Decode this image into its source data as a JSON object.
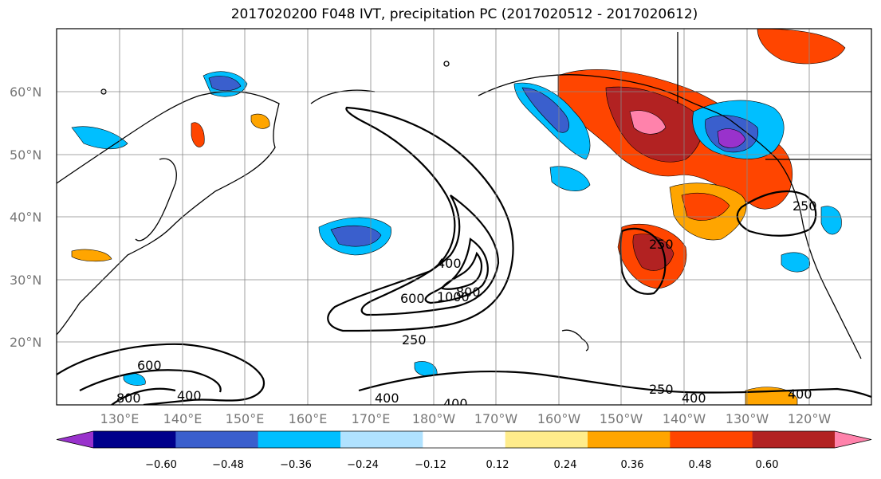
{
  "title": "2017020200 F048 IVT, precipitation PC (2017020512 - 2017020612)",
  "lat_ticks": [
    "60°N",
    "50°N",
    "40°N",
    "30°N",
    "20°N"
  ],
  "lon_ticks": [
    "130°E",
    "140°E",
    "150°E",
    "160°E",
    "170°E",
    "180°W",
    "170°W",
    "160°W",
    "150°W",
    "140°W",
    "130°W",
    "120°W"
  ],
  "contour_labels": [
    "600",
    "400",
    "1000",
    "800",
    "250",
    "600",
    "800",
    "400",
    "400",
    "400",
    "250",
    "400",
    "250",
    "250"
  ],
  "colorbar": {
    "tick_labels": [
      "−0.60",
      "−0.48",
      "−0.36",
      "−0.24",
      "−0.12",
      "0.12",
      "0.24",
      "0.36",
      "0.48",
      "0.60"
    ],
    "colors": [
      "#9932cc",
      "#00008b",
      "#3a5fcd",
      "#00bfff",
      "#b0e2ff",
      "#ffffff",
      "#ffec8b",
      "#ffa500",
      "#ff4500",
      "#b22222",
      "#ff82ab"
    ]
  }
}
